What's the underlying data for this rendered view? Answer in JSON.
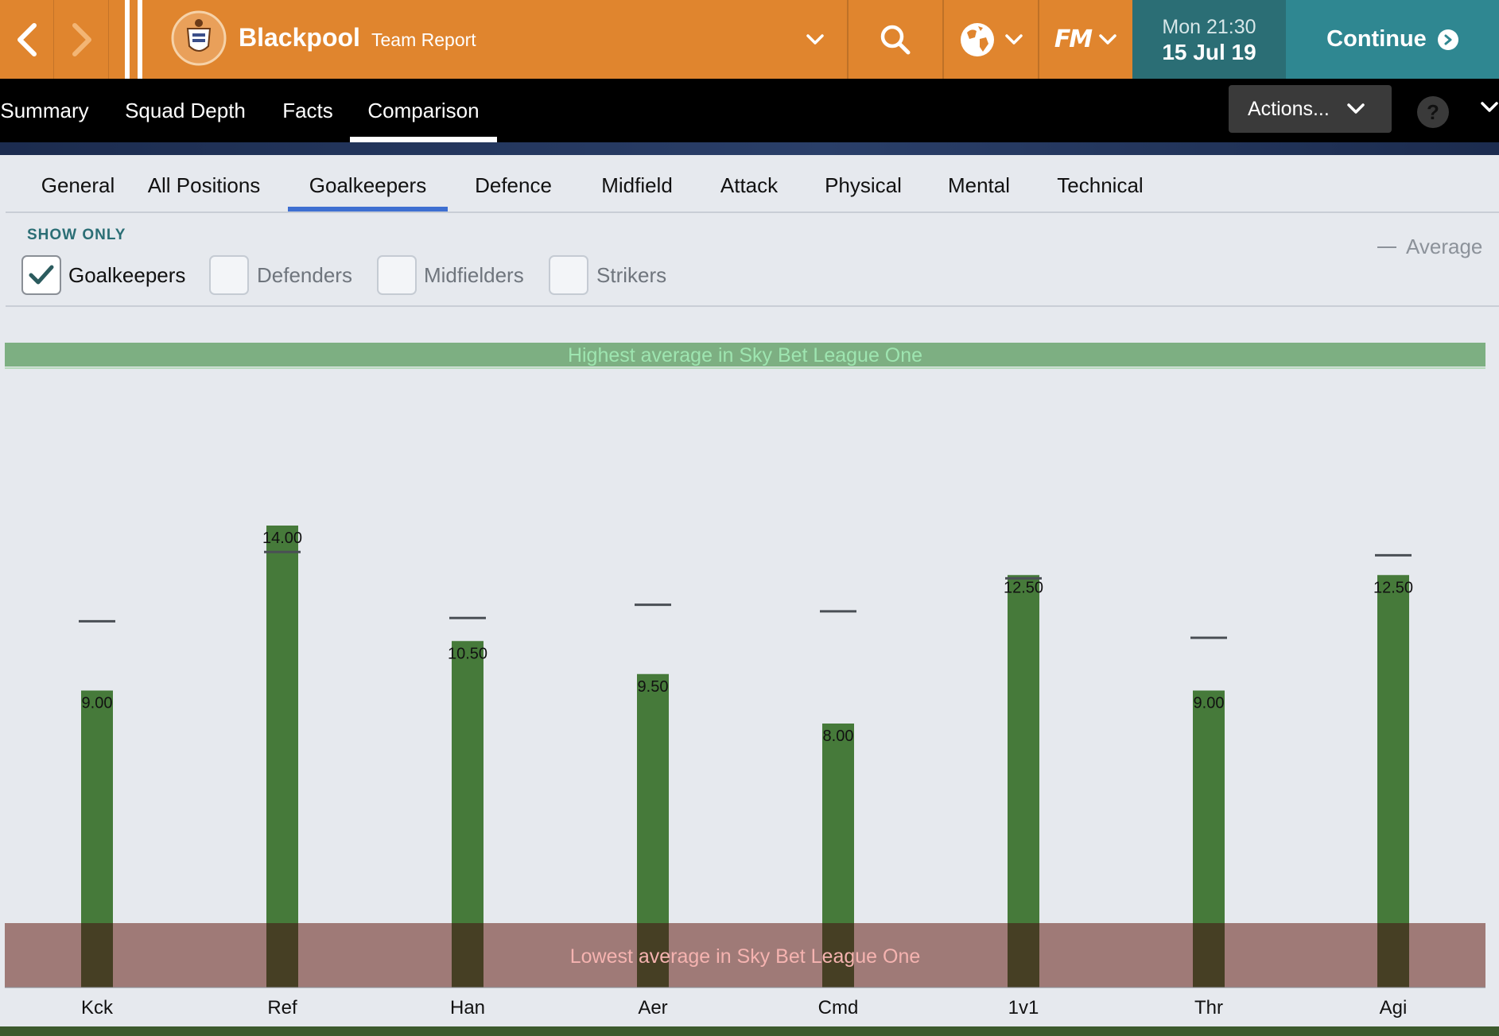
{
  "header": {
    "team_name": "Blackpool",
    "page_title": "Team Report",
    "date_day": "Mon 21:30",
    "date_date": "15 Jul 19",
    "continue_label": "Continue",
    "fm_label": "FM"
  },
  "main_tabs": [
    {
      "label": "Summary"
    },
    {
      "label": "Squad Depth"
    },
    {
      "label": "Facts"
    },
    {
      "label": "Comparison",
      "active": true
    }
  ],
  "actions_label": "Actions...",
  "help_label": "?",
  "sub_tabs": [
    {
      "label": "General"
    },
    {
      "label": "All Positions"
    },
    {
      "label": "Goalkeepers",
      "active": true
    },
    {
      "label": "Defence"
    },
    {
      "label": "Midfield"
    },
    {
      "label": "Attack"
    },
    {
      "label": "Physical"
    },
    {
      "label": "Mental"
    },
    {
      "label": "Technical"
    }
  ],
  "filters": {
    "title": "SHOW ONLY",
    "options": [
      {
        "label": "Goalkeepers",
        "checked": true
      },
      {
        "label": "Defenders",
        "checked": false
      },
      {
        "label": "Midfielders",
        "checked": false
      },
      {
        "label": "Strikers",
        "checked": false
      }
    ]
  },
  "legend": {
    "average_label": "Average"
  },
  "colors": {
    "topbar": "#e0852e",
    "date_box": "#2b6e75",
    "continue": "#2f8791",
    "bar": "#467a3a",
    "highest_band": "#7daf82",
    "lowest_band": "#9b7470",
    "active_subtab": "#3e6fd1"
  },
  "chart_data": {
    "type": "bar",
    "categories": [
      "Kck",
      "Ref",
      "Han",
      "Aer",
      "Cmd",
      "1v1",
      "Thr",
      "Agi"
    ],
    "values": [
      9.0,
      14.0,
      10.5,
      9.5,
      8.0,
      12.5,
      9.0,
      12.5
    ],
    "value_labels": [
      "9.00",
      "14.00",
      "10.50",
      "9.50",
      "8.00",
      "12.50",
      "9.00",
      "12.50"
    ],
    "average": [
      11.1,
      13.2,
      11.2,
      11.6,
      11.4,
      12.4,
      10.6,
      13.1
    ],
    "highest_label": "Highest average in Sky Bet League One",
    "lowest_label": "Lowest average in Sky Bet League One"
  }
}
